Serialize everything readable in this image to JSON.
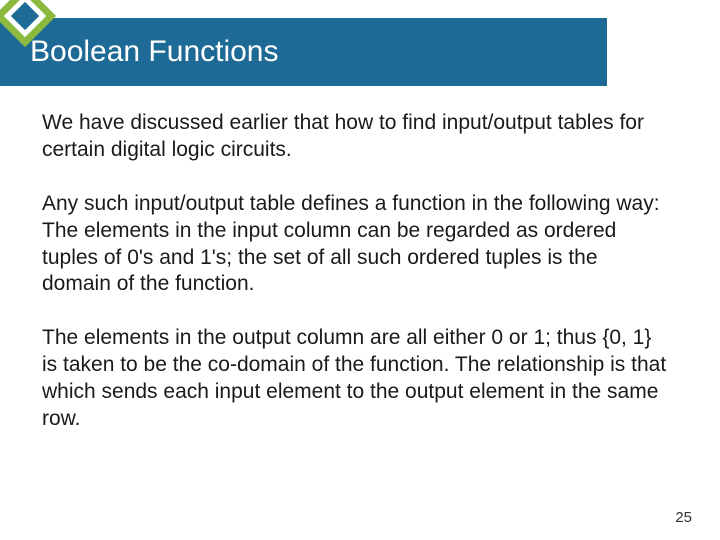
{
  "slide": {
    "title": "Boolean Functions",
    "paragraphs": [
      "We have discussed earlier that how to find input/output tables for certain digital logic circuits.",
      "Any such input/output table defines a function in the following way: The elements in the input column can be regarded as ordered tuples of 0's and 1's; the set of all such ordered tuples is the domain of the function.",
      "The elements in the output column are all either 0 or 1; thus {0, 1} is taken to be the co-domain of the function. The relationship is that which sends each input element to the output element in the same row."
    ],
    "page_number": "25"
  },
  "style": {
    "header_bg": "#1d6a96",
    "header_text_color": "#ffffff",
    "header_fontsize": 30,
    "body_fontsize": 21,
    "body_color": "#1a1a1a",
    "diamond_outer_color": "#8bba3f",
    "diamond_inner_color": "#ffffff",
    "diamond_core_color": "#1d6a96",
    "page_bg": "#ffffff",
    "page_num_fontsize": 15
  }
}
